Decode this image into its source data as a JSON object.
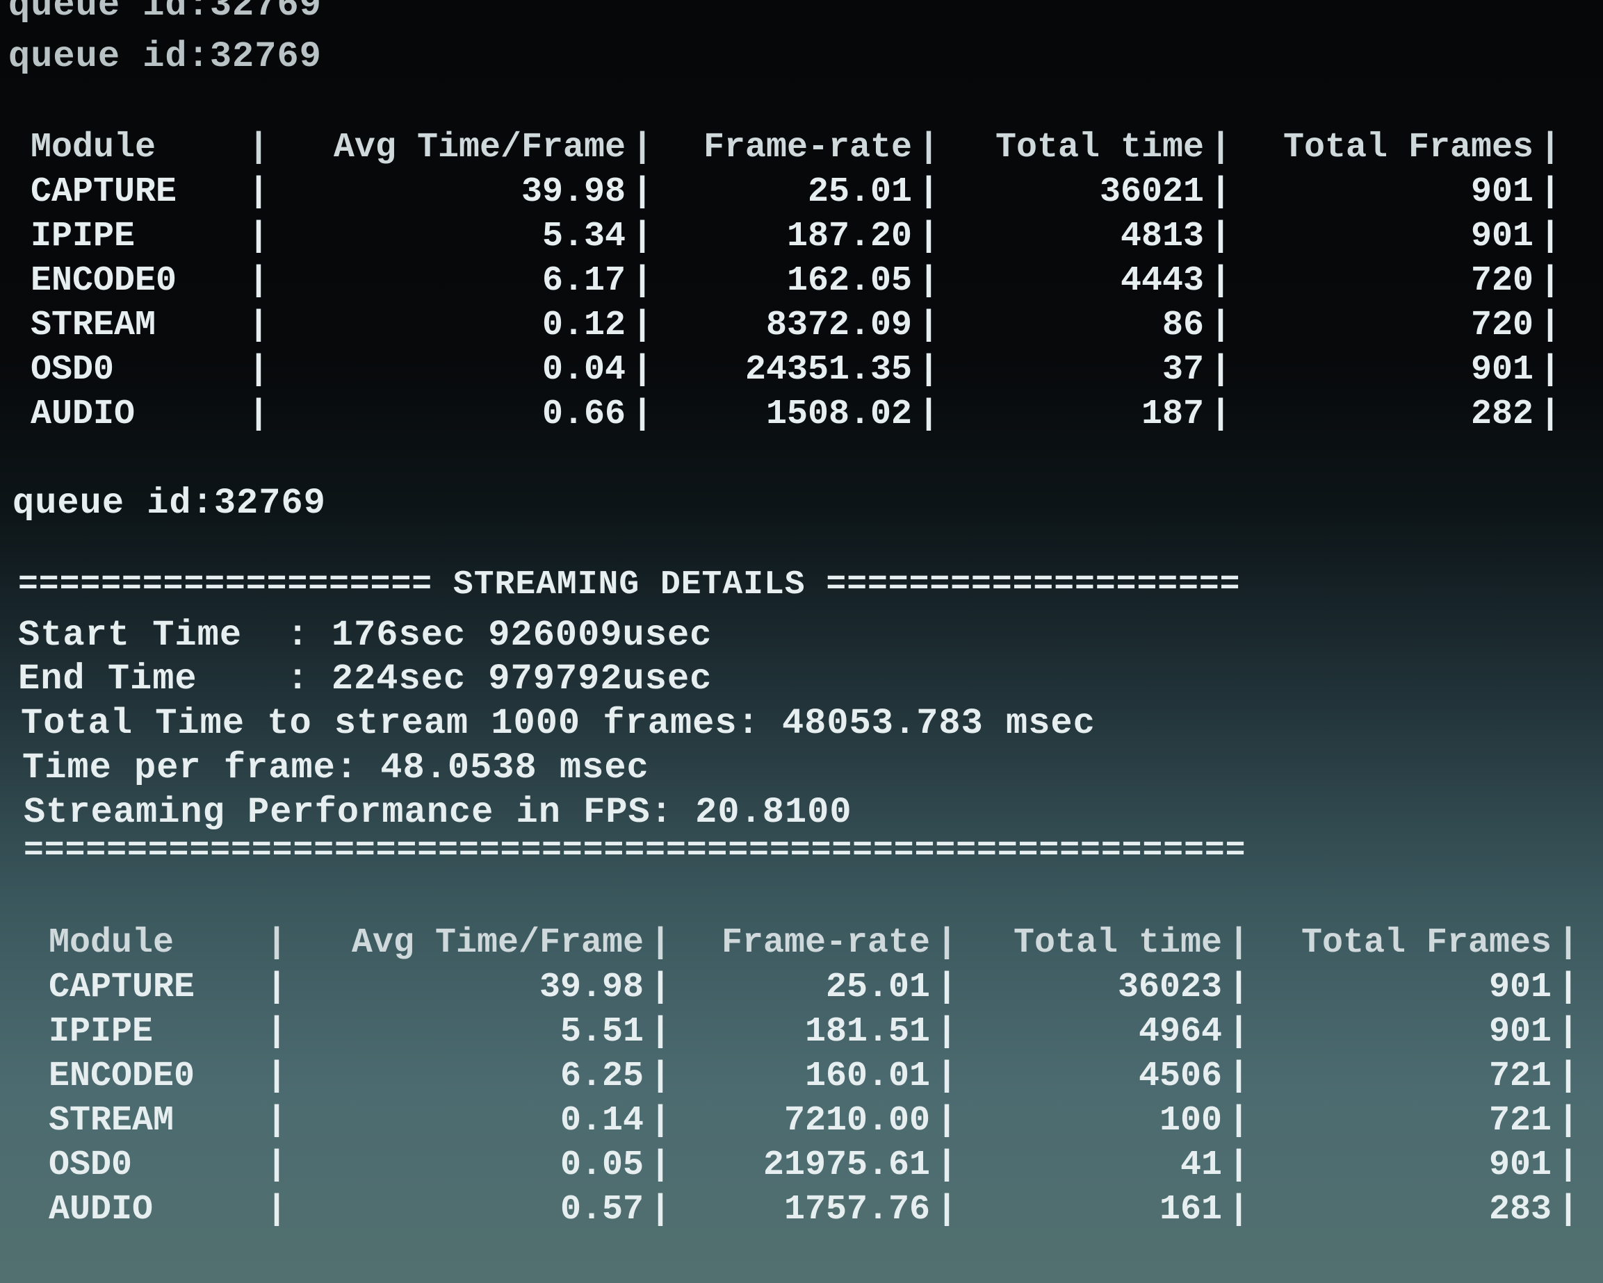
{
  "queue_lines": [
    "queue id:32769",
    "queue id:32769",
    "queue id:32769"
  ],
  "table_headers": [
    "Module",
    "Avg Time/Frame",
    "Frame-rate",
    "Total time",
    "Total Frames"
  ],
  "table1": [
    [
      "CAPTURE",
      "39.98",
      "25.01",
      "36021",
      "901"
    ],
    [
      "IPIPE",
      "5.34",
      "187.20",
      "4813",
      "901"
    ],
    [
      "ENCODE0",
      "6.17",
      "162.05",
      "4443",
      "720"
    ],
    [
      "STREAM",
      "0.12",
      "8372.09",
      "86",
      "720"
    ],
    [
      "OSD0",
      "0.04",
      "24351.35",
      "37",
      "901"
    ],
    [
      "AUDIO",
      "0.66",
      "1508.02",
      "187",
      "282"
    ]
  ],
  "streaming": {
    "header": "==================== STREAMING DETAILS ====================",
    "start_time": "Start Time  : 176sec 926009usec",
    "end_time": "End Time    : 224sec 979792usec",
    "total_time": "Total Time to stream 1000 frames: 48053.783 msec",
    "time_per_frame": "Time per frame: 48.0538 msec",
    "fps": "Streaming Performance in FPS: 20.8100",
    "footer": "==========================================================="
  },
  "table2": [
    [
      "CAPTURE",
      "39.98",
      "25.01",
      "36023",
      "901"
    ],
    [
      "IPIPE",
      "5.51",
      "181.51",
      "4964",
      "901"
    ],
    [
      "ENCODE0",
      "6.25",
      "160.01",
      "4506",
      "721"
    ],
    [
      "STREAM",
      "0.14",
      "7210.00",
      "100",
      "721"
    ],
    [
      "OSD0",
      "0.05",
      "21975.61",
      "41",
      "901"
    ],
    [
      "AUDIO",
      "0.57",
      "1757.76",
      "161",
      "283"
    ]
  ]
}
